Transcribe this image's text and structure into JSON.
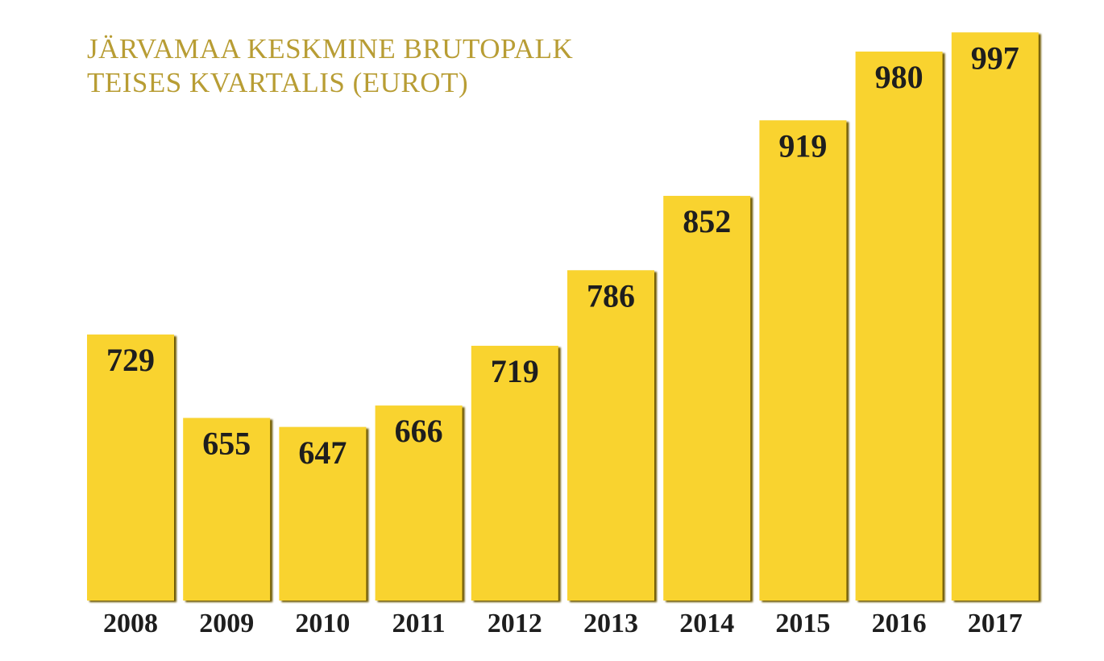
{
  "chart_data": {
    "type": "bar",
    "title": [
      "JÄRVAMAA KESKMINE BRUTOPALK",
      "TEISES KVARTALIS (EUROT)"
    ],
    "categories": [
      "2008",
      "2009",
      "2010",
      "2011",
      "2012",
      "2013",
      "2014",
      "2015",
      "2016",
      "2017"
    ],
    "values": [
      729,
      655,
      647,
      666,
      719,
      786,
      852,
      919,
      980,
      997
    ],
    "color": "#f9d32f",
    "ylim": [
      493,
      1000
    ]
  }
}
